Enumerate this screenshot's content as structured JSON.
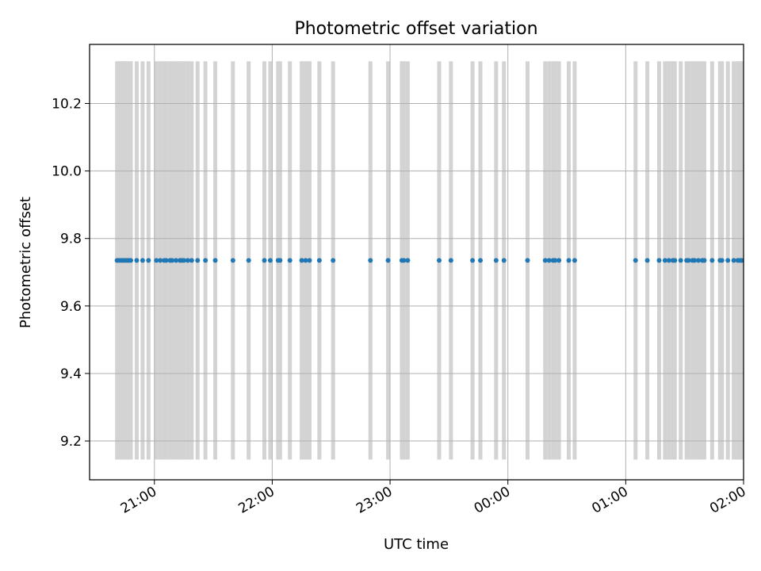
{
  "chart_data": {
    "type": "scatter",
    "title": "Photometric offset variation",
    "xlabel": "UTC time",
    "ylabel": "Photometric offset",
    "x_ticks": [
      "21:00",
      "22:00",
      "23:00",
      "00:00",
      "01:00",
      "02:00"
    ],
    "x_tick_minutes": [
      0,
      60,
      120,
      180,
      240,
      300
    ],
    "xlim_minutes": [
      -33,
      300
    ],
    "y_ticks": [
      "9.2",
      "9.4",
      "9.6",
      "9.8",
      "10.0",
      "10.2"
    ],
    "y_tick_values": [
      9.2,
      9.4,
      9.6,
      9.8,
      10.0,
      10.2
    ],
    "ylim": [
      9.085,
      10.375
    ],
    "grid": true,
    "error_band": [
      9.145,
      10.325
    ],
    "series": [
      {
        "color": "#1f77b4",
        "x_minutes_after_2100": [
          -19,
          -18,
          -17,
          -16,
          -15,
          -14,
          -13,
          -12,
          -9,
          -6,
          -3,
          1,
          3,
          5,
          6,
          8,
          9,
          11,
          13,
          14,
          15,
          17,
          19,
          22,
          26,
          31,
          40,
          48,
          56,
          59,
          63,
          64,
          69,
          75,
          77,
          79,
          84,
          91,
          110,
          119,
          126,
          127,
          129,
          145,
          151,
          162,
          166,
          174,
          178,
          190,
          199,
          201,
          203,
          204,
          206,
          211,
          214,
          245,
          251,
          257,
          260,
          262,
          264,
          265,
          268,
          271,
          272,
          274,
          275,
          277,
          279,
          280,
          284,
          288,
          289,
          292,
          295,
          297,
          298,
          299
        ],
        "y": [
          9.735,
          9.735,
          9.735,
          9.735,
          9.735,
          9.735,
          9.735,
          9.735,
          9.735,
          9.735,
          9.735,
          9.735,
          9.735,
          9.735,
          9.735,
          9.735,
          9.735,
          9.735,
          9.735,
          9.735,
          9.735,
          9.735,
          9.735,
          9.735,
          9.735,
          9.735,
          9.735,
          9.735,
          9.735,
          9.735,
          9.735,
          9.735,
          9.735,
          9.735,
          9.735,
          9.735,
          9.735,
          9.735,
          9.735,
          9.735,
          9.735,
          9.735,
          9.735,
          9.735,
          9.735,
          9.735,
          9.735,
          9.735,
          9.735,
          9.735,
          9.735,
          9.735,
          9.735,
          9.735,
          9.735,
          9.735,
          9.735,
          9.735,
          9.735,
          9.735,
          9.735,
          9.735,
          9.735,
          9.735,
          9.735,
          9.735,
          9.735,
          9.735,
          9.735,
          9.735,
          9.735,
          9.735,
          9.735,
          9.735,
          9.735,
          9.735,
          9.735,
          9.735,
          9.735,
          9.735
        ]
      }
    ]
  }
}
